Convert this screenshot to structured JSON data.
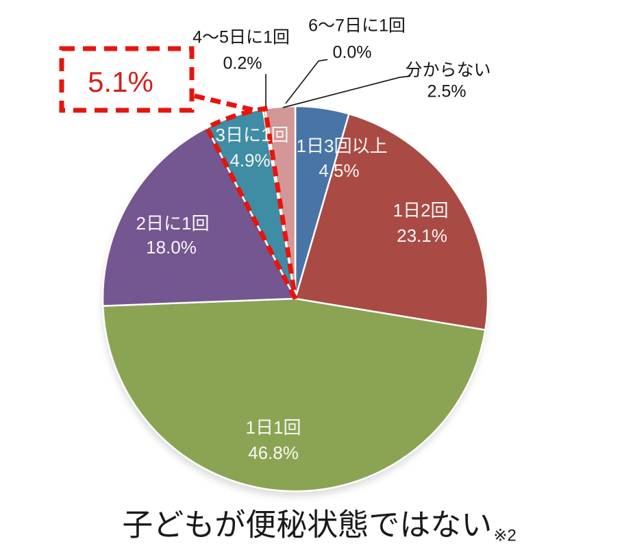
{
  "chart_data": {
    "type": "pie",
    "title": "子どもが便秘状態ではない",
    "title_note": "※2",
    "direction": "clockwise",
    "start_angle_deg": 0,
    "legend": "none",
    "background_color": "#FFFFFF",
    "slice_border_color": "#FFFFFF",
    "slices": [
      {
        "label": "1日3回以上",
        "value": 4.5,
        "display": "4.5%",
        "color": "#4874A6",
        "label_placement": "inside"
      },
      {
        "label": "1日2回",
        "value": 23.1,
        "display": "23.1%",
        "color": "#A94B44",
        "label_placement": "inside"
      },
      {
        "label": "1日1回",
        "value": 46.8,
        "display": "46.8%",
        "color": "#8BA454",
        "label_placement": "inside"
      },
      {
        "label": "2日に1回",
        "value": 18.0,
        "display": "18.0%",
        "color": "#745790",
        "label_placement": "inside"
      },
      {
        "label": "3日に1回",
        "value": 4.9,
        "display": "4.9%",
        "color": "#3E8DA5",
        "label_placement": "inside"
      },
      {
        "label": "4～5日に1回",
        "value": 0.2,
        "display": "0.2%",
        "color": "#DB8C42",
        "label_placement": "outside"
      },
      {
        "label": "6～7日に1回",
        "value": 0.0,
        "display": "0.0%",
        "color": "#95B3D7",
        "label_placement": "outside"
      },
      {
        "label": "分からない",
        "value": 2.5,
        "display": "2.5%",
        "color": "#D29796",
        "label_placement": "outside"
      }
    ],
    "callout": {
      "label": "5.1%",
      "covers": [
        "3日に1回",
        "4～5日に1回",
        "6～7日に1回"
      ],
      "outline_color": "#E8140C",
      "text_color": "#D2201A"
    }
  }
}
